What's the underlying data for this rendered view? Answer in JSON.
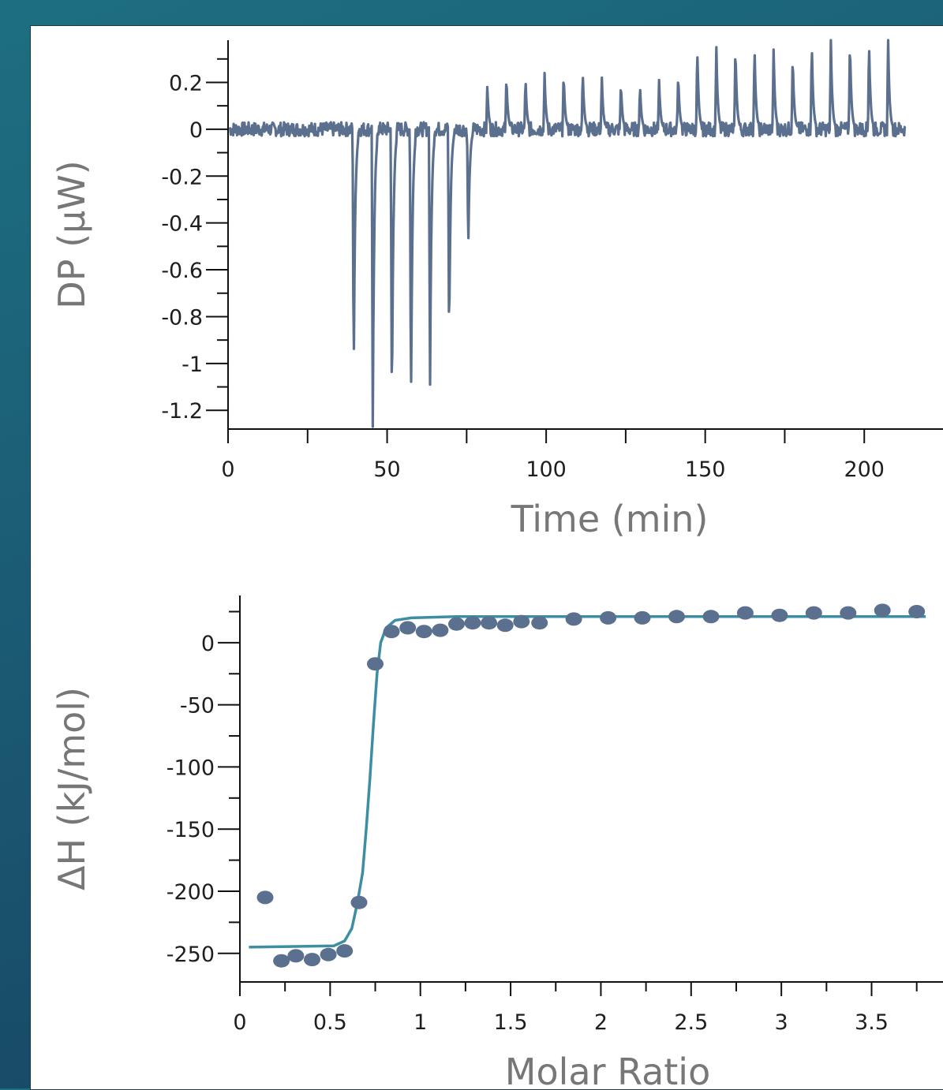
{
  "colors": {
    "background": "#1b5a73",
    "trace": "#5b6f8e",
    "marker": "#5b6f8e",
    "fit_line": "#3d8ea3"
  },
  "chart_data": [
    {
      "type": "line",
      "xlabel": "Time (min)",
      "ylabel": "DP (µW)",
      "xlim": [
        0,
        225
      ],
      "ylim": [
        -1.28,
        0.38
      ],
      "x_ticks": [
        "0",
        "50",
        "100",
        "150",
        "200"
      ],
      "y_ticks": [
        "0.2",
        "0",
        "-0.2",
        "-0.4",
        "-0.6",
        "-0.8",
        "-1",
        "-1.2"
      ],
      "baseline": 0,
      "noise_amplitude": 0.03,
      "trace_end": 213,
      "series": [
        {
          "injection_times": [
            39.5,
            45.5,
            51.5,
            57.5,
            63.5,
            69.5,
            75.5,
            81.5,
            87.5,
            93.5,
            99.5,
            105.5,
            111.5,
            117.5,
            123.5,
            129.5,
            135.5,
            141.5,
            147.5,
            153.5,
            159.5,
            165.5,
            171.5,
            177.5,
            183.5,
            189.5,
            195.5,
            201.5,
            207.5
          ],
          "peak_heights": [
            -1.07,
            -1.27,
            -1.25,
            -1.23,
            -1.09,
            -0.94,
            -0.53,
            0.18,
            0.23,
            0.22,
            0.24,
            0.24,
            0.25,
            0.22,
            0.2,
            0.19,
            0.21,
            0.24,
            0.35,
            0.35,
            0.36,
            0.36,
            0.34,
            0.32,
            0.37,
            0.38,
            0.38,
            0.38,
            0.38
          ]
        }
      ]
    },
    {
      "type": "scatter",
      "xlabel": "Molar Ratio",
      "ylabel": "ΔH (kJ/mol)",
      "xlim": [
        0,
        3.9
      ],
      "ylim": [
        -273,
        38
      ],
      "x_ticks": [
        "0",
        "0.5",
        "1",
        "1.5",
        "2",
        "2.5",
        "3",
        "3.5"
      ],
      "y_ticks": [
        "0",
        "-50",
        "-100",
        "-150",
        "-200",
        "-250"
      ],
      "series": [
        {
          "x": [
            0.14,
            0.23,
            0.31,
            0.4,
            0.49,
            0.58,
            0.66,
            0.75,
            0.84,
            0.93,
            1.02,
            1.11,
            1.2,
            1.29,
            1.38,
            1.47,
            1.56,
            1.66,
            1.85,
            2.04,
            2.23,
            2.42,
            2.61,
            2.8,
            2.99,
            3.18,
            3.37,
            3.56,
            3.75
          ],
          "y": [
            -205,
            -256,
            -252,
            -255,
            -251,
            -248,
            -209,
            -17,
            9,
            12,
            9,
            10,
            15,
            16,
            16,
            14,
            17,
            16,
            19,
            20,
            20,
            21,
            21,
            24,
            22,
            24,
            24,
            26,
            25
          ]
        },
        {
          "x": [
            0.05,
            0.52,
            0.58,
            0.62,
            0.65,
            0.68,
            0.7,
            0.72,
            0.74,
            0.76,
            0.78,
            0.81,
            0.86,
            0.95,
            1.2,
            2.0,
            3.0,
            3.8
          ],
          "y": [
            -245,
            -244,
            -240,
            -230,
            -210,
            -185,
            -150,
            -110,
            -65,
            -25,
            0,
            12,
            18,
            20,
            21,
            21,
            21,
            21
          ]
        }
      ]
    }
  ]
}
